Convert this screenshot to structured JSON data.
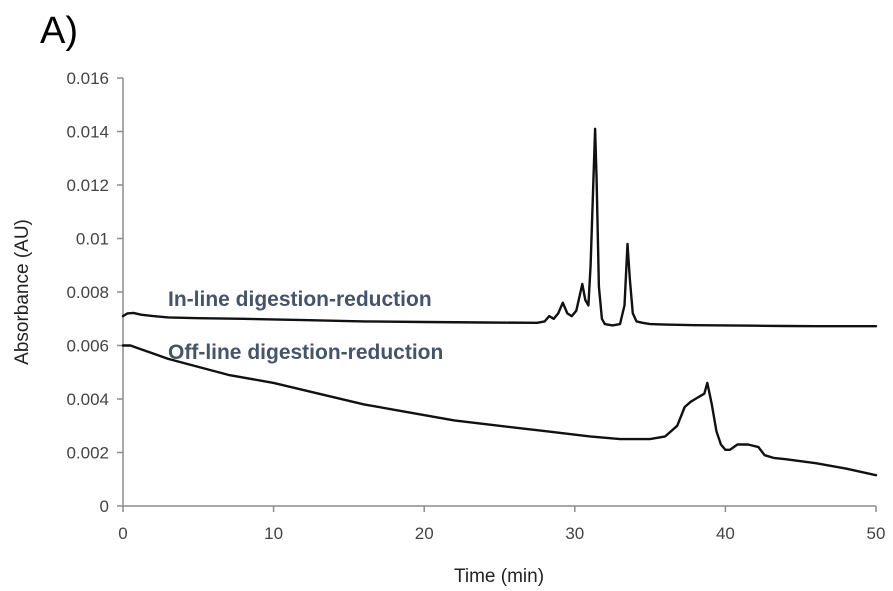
{
  "panel_label": "A)",
  "chart_data": {
    "type": "line",
    "title": "",
    "xlabel": "Time (min)",
    "ylabel": "Absorbance (AU)",
    "xlim": [
      0,
      50
    ],
    "ylim": [
      0,
      0.016
    ],
    "x_ticks": [
      0,
      10,
      20,
      30,
      40,
      50
    ],
    "x_tick_labels": [
      "0",
      "10",
      "20",
      "30",
      "40",
      "50"
    ],
    "y_ticks": [
      0,
      0.002,
      0.004,
      0.006,
      0.008,
      0.01,
      0.012,
      0.014,
      0.016
    ],
    "y_tick_labels": [
      "0",
      "0.002",
      "0.004",
      "0.006",
      "0.008",
      "0.01",
      "0.012",
      "0.014",
      "0.016"
    ],
    "grid": false,
    "legend": "none",
    "annotations": [
      {
        "text": "In-line digestion-reduction",
        "series": 0
      },
      {
        "text": "Off-line digestion-reduction",
        "series": 1
      }
    ],
    "series": [
      {
        "name": "In-line digestion-reduction",
        "color": "#111111",
        "x": [
          0,
          0.3,
          0.7,
          1.2,
          2,
          3,
          5,
          8,
          12,
          16,
          20,
          24,
          27.5,
          28.0,
          28.3,
          28.6,
          28.9,
          29.2,
          29.5,
          29.8,
          30.1,
          30.3,
          30.5,
          30.7,
          30.9,
          31.05,
          31.2,
          31.35,
          31.45,
          31.6,
          31.8,
          32.0,
          32.5,
          33.0,
          33.3,
          33.5,
          33.65,
          33.85,
          34.1,
          34.5,
          35,
          36,
          38,
          40,
          42,
          44,
          46,
          48,
          50
        ],
        "y": [
          0.0071,
          0.0072,
          0.00722,
          0.00715,
          0.0071,
          0.00705,
          0.00702,
          0.007,
          0.00695,
          0.0069,
          0.00688,
          0.00686,
          0.00685,
          0.0069,
          0.0071,
          0.007,
          0.0072,
          0.0076,
          0.0072,
          0.0071,
          0.0073,
          0.0078,
          0.0083,
          0.0077,
          0.0075,
          0.009,
          0.0116,
          0.0141,
          0.0122,
          0.0082,
          0.007,
          0.0068,
          0.00675,
          0.0068,
          0.0075,
          0.0098,
          0.0085,
          0.0072,
          0.0069,
          0.00685,
          0.0068,
          0.00678,
          0.00676,
          0.00675,
          0.00674,
          0.00673,
          0.00672,
          0.00672,
          0.00672
        ]
      },
      {
        "name": "Off-line digestion-reduction",
        "color": "#111111",
        "x": [
          0,
          0.5,
          1,
          2,
          3,
          5,
          7,
          10,
          13,
          16,
          19,
          22,
          25,
          28,
          31,
          33,
          35,
          36,
          36.8,
          37.3,
          37.7,
          38.0,
          38.3,
          38.6,
          38.8,
          39.1,
          39.4,
          39.7,
          40.0,
          40.3,
          40.8,
          41.5,
          42.2,
          42.6,
          43.2,
          44,
          46,
          48,
          50
        ],
        "y": [
          0.006,
          0.006,
          0.0059,
          0.0057,
          0.0055,
          0.0052,
          0.0049,
          0.0046,
          0.0042,
          0.0038,
          0.0035,
          0.0032,
          0.003,
          0.0028,
          0.0026,
          0.0025,
          0.0025,
          0.0026,
          0.003,
          0.0037,
          0.0039,
          0.004,
          0.0041,
          0.0042,
          0.0046,
          0.0038,
          0.0028,
          0.0023,
          0.0021,
          0.0021,
          0.0023,
          0.0023,
          0.0022,
          0.0019,
          0.0018,
          0.00175,
          0.0016,
          0.0014,
          0.00115
        ]
      }
    ]
  }
}
